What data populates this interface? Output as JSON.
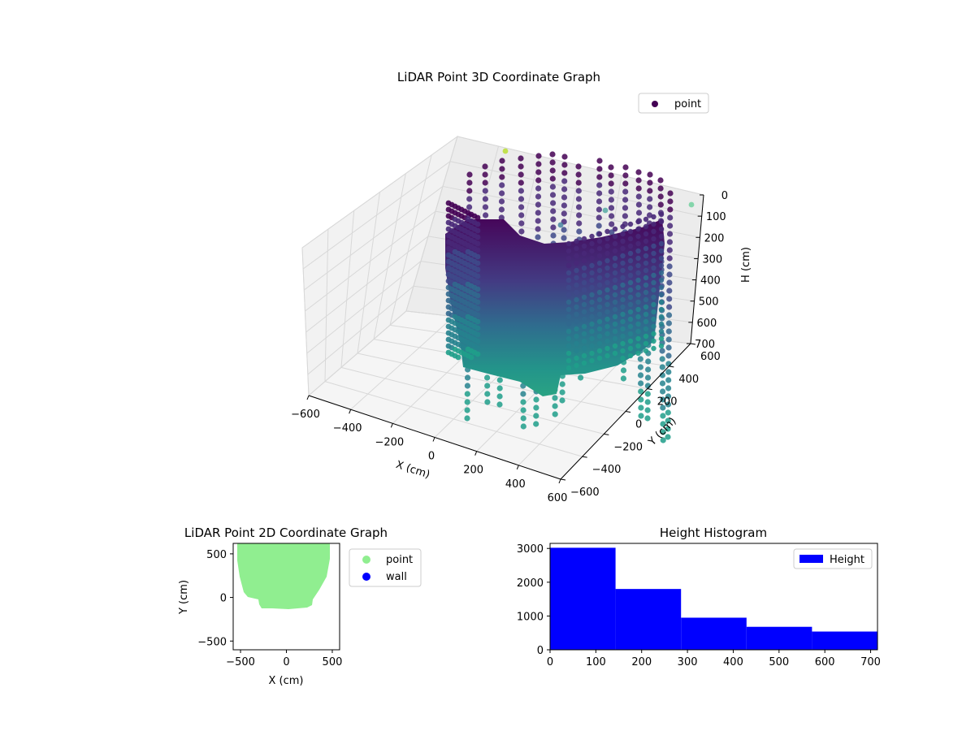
{
  "chart_data": [
    {
      "type": "scatter",
      "title": "LiDAR Point 3D Coordinate Graph",
      "xlabel": "X (cm)",
      "ylabel": "Y (cm)",
      "zlabel": "H (cm)",
      "xlim": [
        -600,
        600
      ],
      "ylim": [
        -600,
        600
      ],
      "zlim": [
        0,
        700
      ],
      "z_inverted": true,
      "x_ticks": [
        "−600",
        "−400",
        "−200",
        "0",
        "200",
        "400",
        "600"
      ],
      "y_ticks": [
        "−600",
        "−400",
        "−200",
        "0",
        "200",
        "400",
        "600"
      ],
      "z_ticks": [
        "0",
        "100",
        "200",
        "300",
        "400",
        "500",
        "600",
        "700"
      ],
      "colormap": "viridis",
      "grid": true,
      "legend": {
        "position": "top-right",
        "entries": [
          {
            "label": "point",
            "color": "#440154"
          }
        ]
      },
      "series": [
        {
          "name": "point"
        }
      ]
    },
    {
      "type": "scatter",
      "title": "LiDAR Point 2D Coordinate Graph",
      "xlabel": "X (cm)",
      "ylabel": "Y (cm)",
      "xlim": [
        -580,
        580
      ],
      "ylim": [
        -600,
        620
      ],
      "x_ticks": [
        "−500",
        "0",
        "500"
      ],
      "y_ticks": [
        "−500",
        "0",
        "500"
      ],
      "legend": {
        "position": "outside-right",
        "entries": [
          {
            "label": "point",
            "color": "#90ee90"
          },
          {
            "label": "wall",
            "color": "#0000ff"
          }
        ]
      },
      "series": [
        {
          "name": "point",
          "color": "#90ee90"
        },
        {
          "name": "wall",
          "color": "#0000ff"
        }
      ]
    },
    {
      "type": "bar",
      "title": "Height Histogram",
      "xlim": [
        0,
        715
      ],
      "ylim": [
        0,
        3150
      ],
      "x_ticks": [
        "0",
        "100",
        "200",
        "300",
        "400",
        "500",
        "600",
        "700"
      ],
      "y_ticks": [
        "0",
        "1000",
        "2000",
        "3000"
      ],
      "bin_edges": [
        0,
        143,
        286,
        429,
        572,
        715
      ],
      "values": [
        3020,
        1800,
        950,
        680,
        540
      ],
      "legend": {
        "position": "top-right",
        "entries": [
          {
            "label": "Height",
            "color": "#0000ff"
          }
        ]
      },
      "series": [
        {
          "name": "Height",
          "color": "#0000ff"
        }
      ]
    }
  ]
}
